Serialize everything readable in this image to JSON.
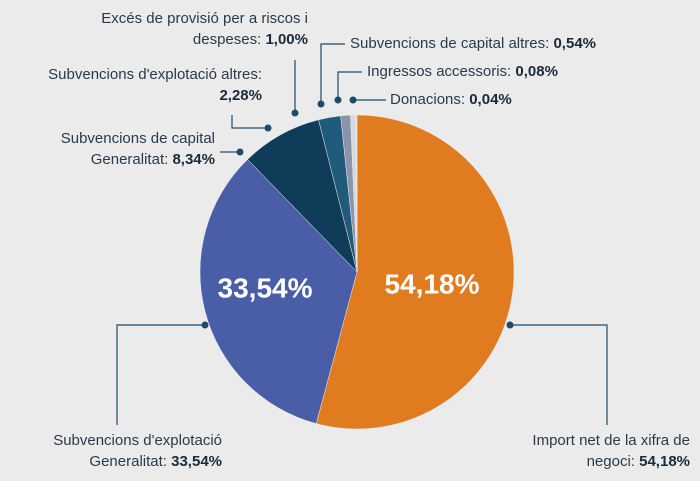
{
  "chart_data": {
    "type": "pie",
    "categories": [
      "Import net de la xifra de negoci:",
      "Subvencions d'explotació Generalitat:",
      "Subvencions de capital Generalitat:",
      "Subvencions d'explotació altres:",
      "Excés de provisió per a riscos i despeses:",
      "Subvencions de capital altres:",
      "Ingressos accessoris:",
      "Donacions:"
    ],
    "values": [
      54.18,
      33.54,
      8.34,
      2.28,
      1.0,
      0.54,
      0.08,
      0.04
    ],
    "value_labels": [
      "54,18%",
      "33,54%",
      "8,34%",
      "2,28%",
      "1,00%",
      "0,54%",
      "0,08%",
      "0,04%"
    ],
    "colors": [
      "#e07b1f",
      "#4a5ea8",
      "#0f3c58",
      "#215b7c",
      "#8c94ab",
      "#d6d9dd",
      "#b9bdc2",
      "#ffffff"
    ]
  }
}
